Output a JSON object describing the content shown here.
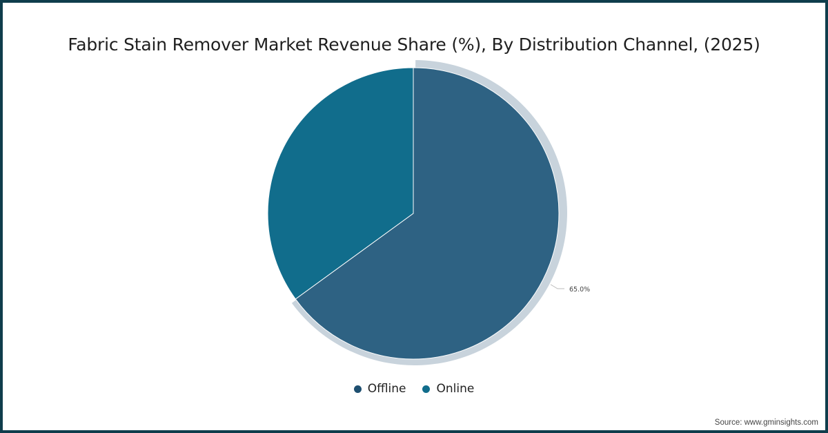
{
  "chart_data": {
    "type": "pie",
    "title": "Fabric Stain Remover Market Revenue Share (%), By Distribution Channel, (2025)",
    "categories": [
      "Offline",
      "Online"
    ],
    "values": [
      65.0,
      35.0
    ],
    "colors": [
      "#2e6283",
      "#116d8c"
    ],
    "data_labels": [
      "65.0%",
      ""
    ],
    "highlighted_slice": "Offline",
    "legend_position": "bottom"
  },
  "header": {
    "title": "Fabric Stain Remover Market Revenue Share (%), By Distribution Channel, (2025)"
  },
  "legend": {
    "items": [
      {
        "label": "Offline",
        "color": "#1e4f70"
      },
      {
        "label": "Online",
        "color": "#116d8c"
      }
    ]
  },
  "slice_label": "65.0%",
  "footer": {
    "source": "Source: www.gminsights.com"
  },
  "colors": {
    "border": "#0f3d4c",
    "highlight_ring": "#c8d3dc"
  }
}
